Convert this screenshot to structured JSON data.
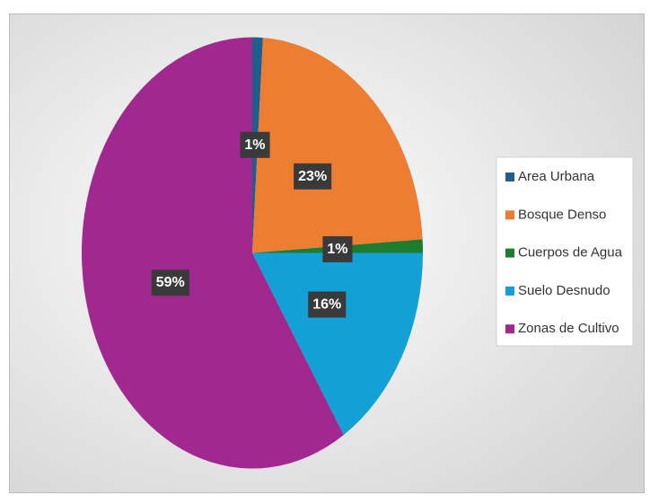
{
  "chart_data": {
    "type": "pie",
    "categories": [
      "Area Urbana",
      "Bosque Denso",
      "Cuerpos de Agua",
      "Suelo Desnudo",
      "Zonas de Cultivo"
    ],
    "values": [
      1,
      23,
      1,
      16,
      59
    ],
    "value_labels": [
      "1%",
      "23%",
      "1%",
      "16%",
      "59%"
    ],
    "colors": [
      "#1f5f8b",
      "#ed7d31",
      "#1e7b30",
      "#12a0d7",
      "#a0288f"
    ],
    "legend": "right"
  }
}
